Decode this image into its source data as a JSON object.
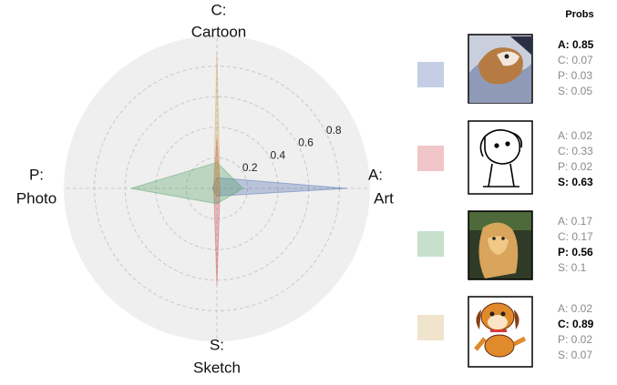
{
  "chart_data": {
    "type": "radar",
    "categories": [
      "A:",
      "C:",
      "P:",
      "S:"
    ],
    "category_names": [
      "Art",
      "Cartoon",
      "Photo",
      "Sketch"
    ],
    "rlim": [
      0,
      1
    ],
    "rticks": [
      0.2,
      0.4,
      0.6,
      0.8
    ],
    "grid": true,
    "legend_title": "Probs",
    "series": [
      {
        "color": "#3a5fa8",
        "values": [
          0.85,
          0.07,
          0.03,
          0.05
        ],
        "value_labels": [
          "A: 0.85",
          "C: 0.07",
          "P: 0.03",
          "S: 0.05"
        ]
      },
      {
        "color": "#cd4148",
        "values": [
          0.02,
          0.33,
          0.02,
          0.63
        ],
        "value_labels": [
          "A: 0.02",
          "C: 0.33",
          "P: 0.02",
          "S: 0.63"
        ]
      },
      {
        "color": "#419855",
        "values": [
          0.17,
          0.17,
          0.56,
          0.1
        ],
        "value_labels": [
          "A: 0.17",
          "C: 0.17",
          "P: 0.56",
          "S: 0.1"
        ]
      },
      {
        "color": "#cda555",
        "values": [
          0.02,
          0.89,
          0.02,
          0.07
        ],
        "value_labels": [
          "A: 0.02",
          "C: 0.89",
          "P: 0.02",
          "S: 0.07"
        ]
      }
    ]
  }
}
